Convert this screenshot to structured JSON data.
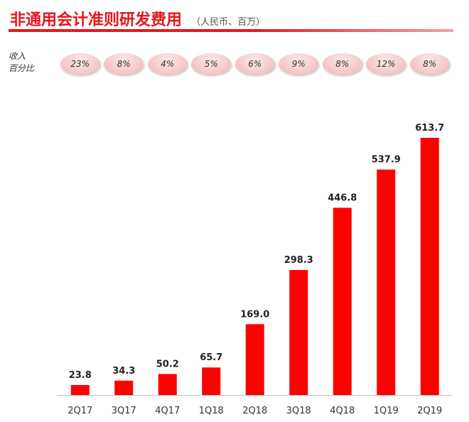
{
  "header": {
    "title": "非通用会计准则研发费用",
    "subtitle": "（人民币、百万）"
  },
  "revenue_pct": {
    "label_line1": "收入",
    "label_line2": "百分比",
    "values": [
      "23%",
      "8%",
      "4%",
      "5%",
      "6%",
      "9%",
      "8%",
      "12%",
      "8%"
    ]
  },
  "colors": {
    "accent": "#e8151b",
    "bar": "#ff0000"
  },
  "chart_data": {
    "type": "bar",
    "categories": [
      "2Q17",
      "3Q17",
      "4Q17",
      "1Q18",
      "2Q18",
      "3Q18",
      "4Q18",
      "1Q19",
      "2Q19"
    ],
    "values": [
      23.8,
      34.3,
      50.2,
      65.7,
      169.0,
      298.3,
      446.8,
      537.9,
      613.7
    ],
    "value_labels": [
      "23.8",
      "34.3",
      "50.2",
      "65.7",
      "169.0",
      "298.3",
      "446.8",
      "537.9",
      "613.7"
    ],
    "title": "非通用会计准则研发费用",
    "subtitle": "（人民币、百万）",
    "xlabel": "",
    "ylabel": "",
    "ylim": [
      0,
      613.7
    ],
    "grid": false,
    "legend": "none"
  }
}
